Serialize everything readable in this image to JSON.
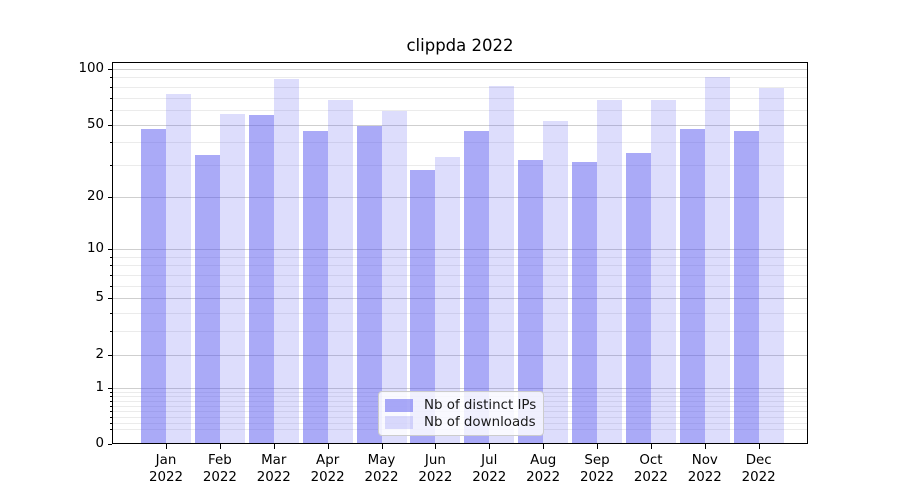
{
  "title": "clippda 2022",
  "chart_data": {
    "type": "bar",
    "title": "clippda 2022",
    "categories": [
      "Jan 2022",
      "Feb 2022",
      "Mar 2022",
      "Apr 2022",
      "May 2022",
      "Jun 2022",
      "Jul 2022",
      "Aug 2022",
      "Sep 2022",
      "Oct 2022",
      "Nov 2022",
      "Dec 2022"
    ],
    "series": [
      {
        "name": "Nb of distinct IPs",
        "color": "rgba(85,85,240,0.5)",
        "values": [
          47,
          34,
          56,
          46,
          49,
          28,
          46,
          32,
          31,
          35,
          47,
          46
        ]
      },
      {
        "name": "Nb of downloads",
        "color": "rgba(85,85,240,0.2)",
        "values": [
          73,
          57,
          88,
          68,
          59,
          33,
          81,
          52,
          68,
          68,
          90,
          79
        ]
      }
    ],
    "xlabel": "",
    "ylabel": "",
    "yscale": "log-like (position proportional to log10(1+y))",
    "ylim": [
      0,
      109
    ],
    "y_ticks": [
      0,
      1,
      2,
      5,
      10,
      20,
      50,
      100
    ],
    "y_minor_ticks": [
      0.2,
      0.3,
      0.4,
      0.5,
      0.6,
      0.7,
      0.8,
      0.9,
      3,
      4,
      6,
      7,
      8,
      9,
      30,
      40,
      60,
      70,
      80,
      90
    ],
    "grid": true,
    "legend": {
      "position": "lower center",
      "labels": [
        "Nb of distinct IPs",
        "Nb of downloads"
      ]
    },
    "colors": {
      "bar_distinct_ips": "rgba(85,85,240,0.5)",
      "bar_downloads": "rgba(85,85,240,0.2)",
      "grid_major": "#cfcfcf",
      "grid_minor": "#ebebeb",
      "axis": "#000000",
      "background": "#ffffff"
    }
  }
}
